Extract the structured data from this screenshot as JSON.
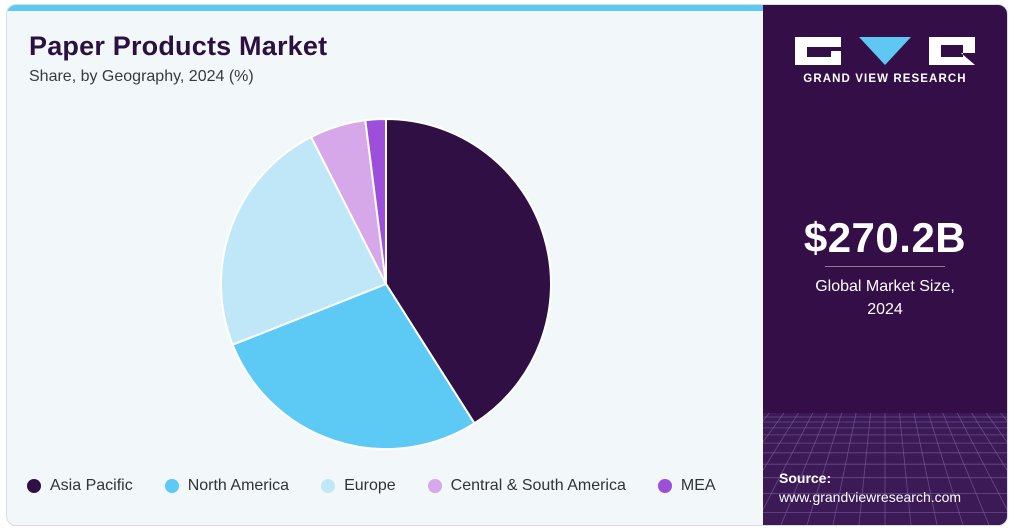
{
  "header": {
    "title": "Paper Products Market",
    "subtitle": "Share, by Geography, 2024 (%)"
  },
  "chart_data": {
    "type": "pie",
    "title": "Paper Products Market",
    "subtitle": "Share, by Geography, 2024 (%)",
    "categories": [
      "Asia Pacific",
      "North America",
      "Europe",
      "Central & South America",
      "MEA"
    ],
    "values": [
      41,
      28,
      23.5,
      5.5,
      2
    ],
    "colors": [
      "#2f0f44",
      "#5ccaf5",
      "#bfe7f8",
      "#d6a8ea",
      "#9d4fdc"
    ],
    "legend_placement": "bottom"
  },
  "sidebar": {
    "logo_text": "GRAND VIEW RESEARCH",
    "market_size": "$270.2B",
    "market_size_label_line1": "Global Market Size,",
    "market_size_label_line2": "2024",
    "source_label": "Source:",
    "source_url": "www.grandviewresearch.com"
  }
}
